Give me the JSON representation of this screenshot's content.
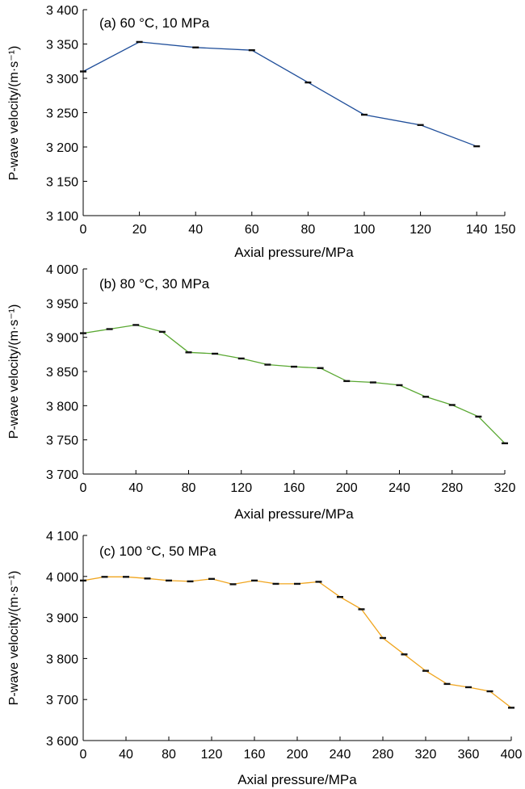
{
  "chart_data": [
    {
      "type": "line",
      "title": "(a) 60 °C, 10 MPa",
      "xlabel": "Axial pressure/MPa",
      "ylabel": "P-wave velocity/(m·s⁻¹)",
      "xlim": [
        0,
        150
      ],
      "ylim": [
        3100,
        3400
      ],
      "xticks": [
        0,
        20,
        40,
        60,
        80,
        100,
        120,
        140,
        150
      ],
      "xtick_labels": [
        "0",
        "20",
        "40",
        "60",
        "80",
        "100",
        "120",
        "140",
        "150"
      ],
      "yticks": [
        3100,
        3150,
        3200,
        3250,
        3300,
        3350,
        3400
      ],
      "ytick_labels": [
        "3 100",
        "3 150",
        "3 200",
        "3 250",
        "3 300",
        "3 350",
        "3 400"
      ],
      "color": "#1f4e9a",
      "error_bars": true,
      "x": [
        0,
        20,
        40,
        60,
        80,
        100,
        120,
        140
      ],
      "y": [
        3310,
        3353,
        3345,
        3341,
        3294,
        3247,
        3232,
        3201
      ]
    },
    {
      "type": "line",
      "title": "(b) 80 °C, 30 MPa",
      "xlabel": "Axial pressure/MPa",
      "ylabel": "P-wave velocity/(m·s⁻¹)",
      "xlim": [
        0,
        320
      ],
      "ylim": [
        3700,
        4000
      ],
      "xticks": [
        0,
        40,
        80,
        120,
        160,
        200,
        240,
        280,
        320
      ],
      "xtick_labels": [
        "0",
        "40",
        "80",
        "120",
        "160",
        "200",
        "240",
        "280",
        "320"
      ],
      "yticks": [
        3700,
        3750,
        3800,
        3850,
        3900,
        3950,
        4000
      ],
      "ytick_labels": [
        "3 700",
        "3 750",
        "3 800",
        "3 850",
        "3 900",
        "3 950",
        "4 000"
      ],
      "color": "#5aa832",
      "error_bars": true,
      "x": [
        0,
        20,
        40,
        60,
        80,
        100,
        120,
        140,
        160,
        180,
        200,
        220,
        240,
        260,
        280,
        300,
        320
      ],
      "y": [
        3906,
        3912,
        3918,
        3908,
        3878,
        3876,
        3869,
        3860,
        3857,
        3855,
        3836,
        3834,
        3830,
        3813,
        3801,
        3784,
        3745
      ]
    },
    {
      "type": "line",
      "title": "(c) 100 °C, 50 MPa",
      "xlabel": "Axial pressure/MPa",
      "ylabel": "P-wave velocity/(m·s⁻¹)",
      "xlim": [
        0,
        400
      ],
      "ylim": [
        3600,
        4100
      ],
      "xticks": [
        0,
        40,
        80,
        120,
        160,
        200,
        240,
        280,
        320,
        360,
        400
      ],
      "xtick_labels": [
        "0",
        "40",
        "80",
        "120",
        "160",
        "200",
        "240",
        "280",
        "320",
        "360",
        "400"
      ],
      "yticks": [
        3600,
        3700,
        3800,
        3900,
        4000,
        4100
      ],
      "ytick_labels": [
        "3 600",
        "3 700",
        "3 800",
        "3 900",
        "4 000",
        "4 100"
      ],
      "color": "#f0a51e",
      "error_bars": true,
      "x": [
        0,
        20,
        40,
        60,
        80,
        100,
        120,
        140,
        160,
        180,
        200,
        220,
        240,
        260,
        280,
        300,
        320,
        340,
        360,
        380,
        400
      ],
      "y": [
        3990,
        3999,
        3999,
        3995,
        3990,
        3988,
        3994,
        3981,
        3990,
        3982,
        3982,
        3987,
        3950,
        3920,
        3850,
        3810,
        3770,
        3738,
        3730,
        3720,
        3680
      ]
    }
  ]
}
